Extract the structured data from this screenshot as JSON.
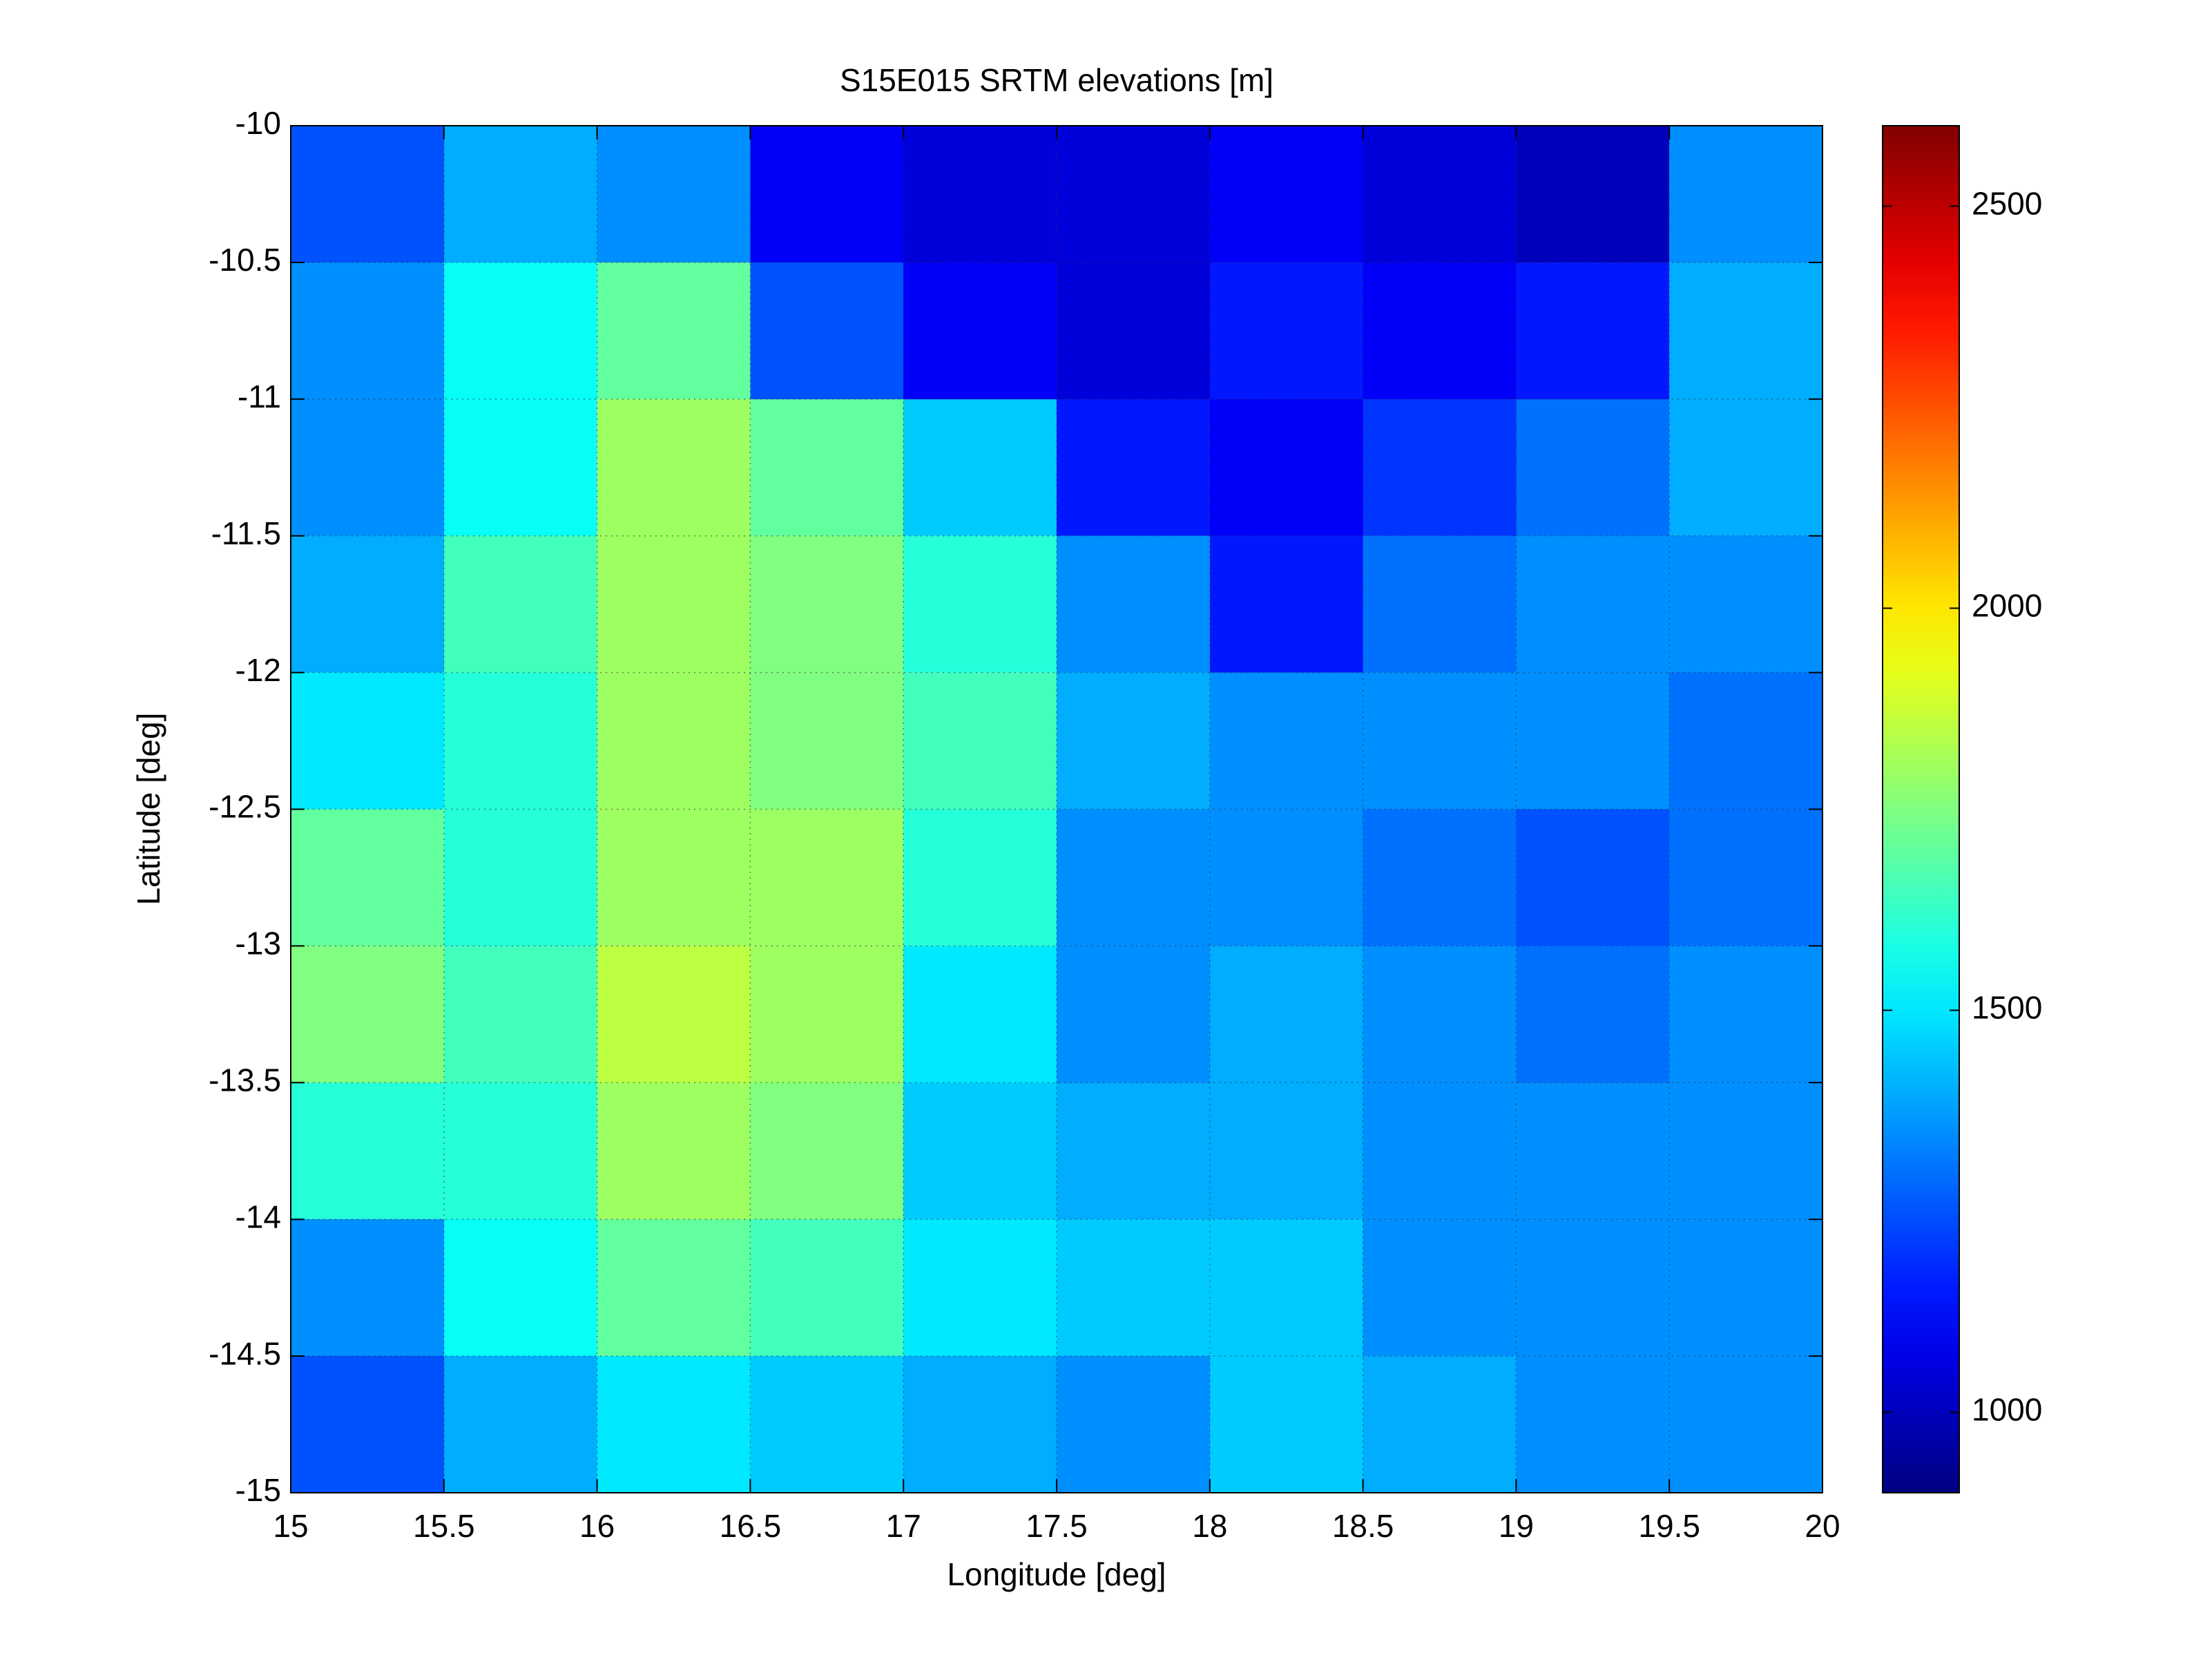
{
  "chart_data": {
    "type": "heatmap",
    "title": "S15E015 SRTM elevations [m]",
    "x_label": "Longitude [deg]",
    "y_label": "Latitude [deg]",
    "xlim": [
      15,
      20
    ],
    "ylim": [
      -15,
      -10
    ],
    "xticks": [
      15,
      15.5,
      16,
      16.5,
      17,
      17.5,
      18,
      18.5,
      19,
      19.5,
      20
    ],
    "yticks": [
      -15,
      -14.5,
      -14,
      -13.5,
      -13,
      -12.5,
      -12,
      -11.5,
      -11,
      -10.5,
      -10
    ],
    "grid": true,
    "colormap": "jet",
    "clim": [
      900,
      2600
    ],
    "colorbar_ticks": [
      1000,
      1500,
      2000,
      2500
    ],
    "z": [
      [
        1250,
        1400,
        1350,
        1100,
        1050,
        1050,
        1100,
        1050,
        1000,
        1350
      ],
      [
        1350,
        1550,
        1700,
        1250,
        1100,
        1050,
        1150,
        1100,
        1150,
        1400
      ],
      [
        1350,
        1550,
        1800,
        1700,
        1450,
        1150,
        1100,
        1200,
        1300,
        1400
      ],
      [
        1400,
        1650,
        1800,
        1750,
        1600,
        1350,
        1150,
        1300,
        1350,
        1350
      ],
      [
        1500,
        1600,
        1800,
        1750,
        1650,
        1400,
        1350,
        1350,
        1350,
        1300
      ],
      [
        1700,
        1600,
        1800,
        1800,
        1600,
        1350,
        1350,
        1300,
        1250,
        1300
      ],
      [
        1750,
        1650,
        1850,
        1800,
        1500,
        1350,
        1400,
        1350,
        1300,
        1350
      ],
      [
        1600,
        1600,
        1800,
        1750,
        1450,
        1400,
        1400,
        1350,
        1350,
        1350
      ],
      [
        1350,
        1550,
        1700,
        1650,
        1500,
        1450,
        1450,
        1350,
        1350,
        1350
      ],
      [
        1250,
        1400,
        1500,
        1450,
        1400,
        1350,
        1450,
        1400,
        1350,
        1350
      ]
    ]
  }
}
